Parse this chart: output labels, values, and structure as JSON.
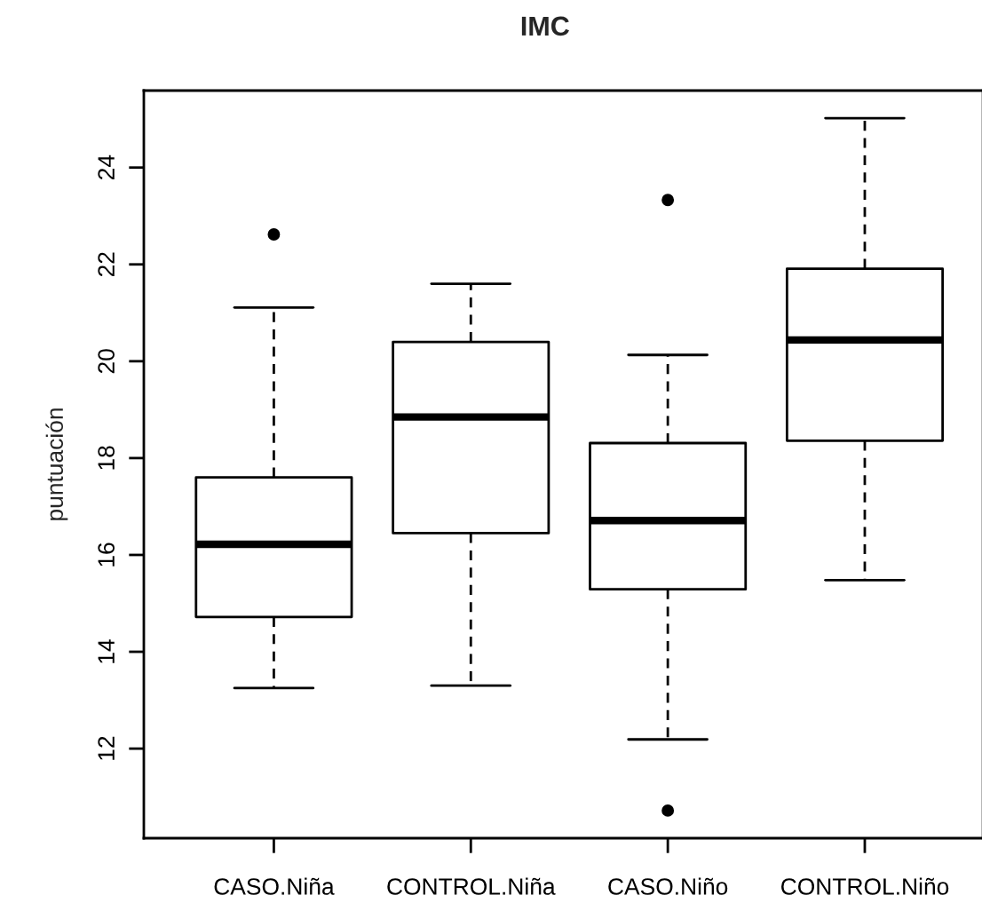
{
  "chart_data": {
    "type": "box",
    "title": "IMC",
    "ylabel": "puntuación",
    "categories": [
      "CASO.Niña",
      "CONTROL.Niña",
      "CASO.Niño",
      "CONTROL.Niño"
    ],
    "boxes": [
      {
        "low": 13.25,
        "q1": 14.72,
        "median": 16.22,
        "q3": 17.6,
        "high": 21.11,
        "outliers": [
          22.62
        ]
      },
      {
        "low": 13.3,
        "q1": 16.45,
        "median": 18.85,
        "q3": 20.4,
        "high": 21.6
      },
      {
        "low": 12.19,
        "q1": 15.29,
        "median": 16.71,
        "q3": 18.31,
        "high": 20.13,
        "outliers": [
          23.33,
          10.72
        ]
      },
      {
        "low": 15.48,
        "q1": 18.36,
        "median": 20.44,
        "q3": 21.91,
        "high": 25.02
      }
    ],
    "ylim": [
      10.15,
      25.59
    ],
    "yticks": [
      12,
      14,
      16,
      18,
      20,
      22,
      24
    ],
    "grid": false,
    "legend": false
  }
}
